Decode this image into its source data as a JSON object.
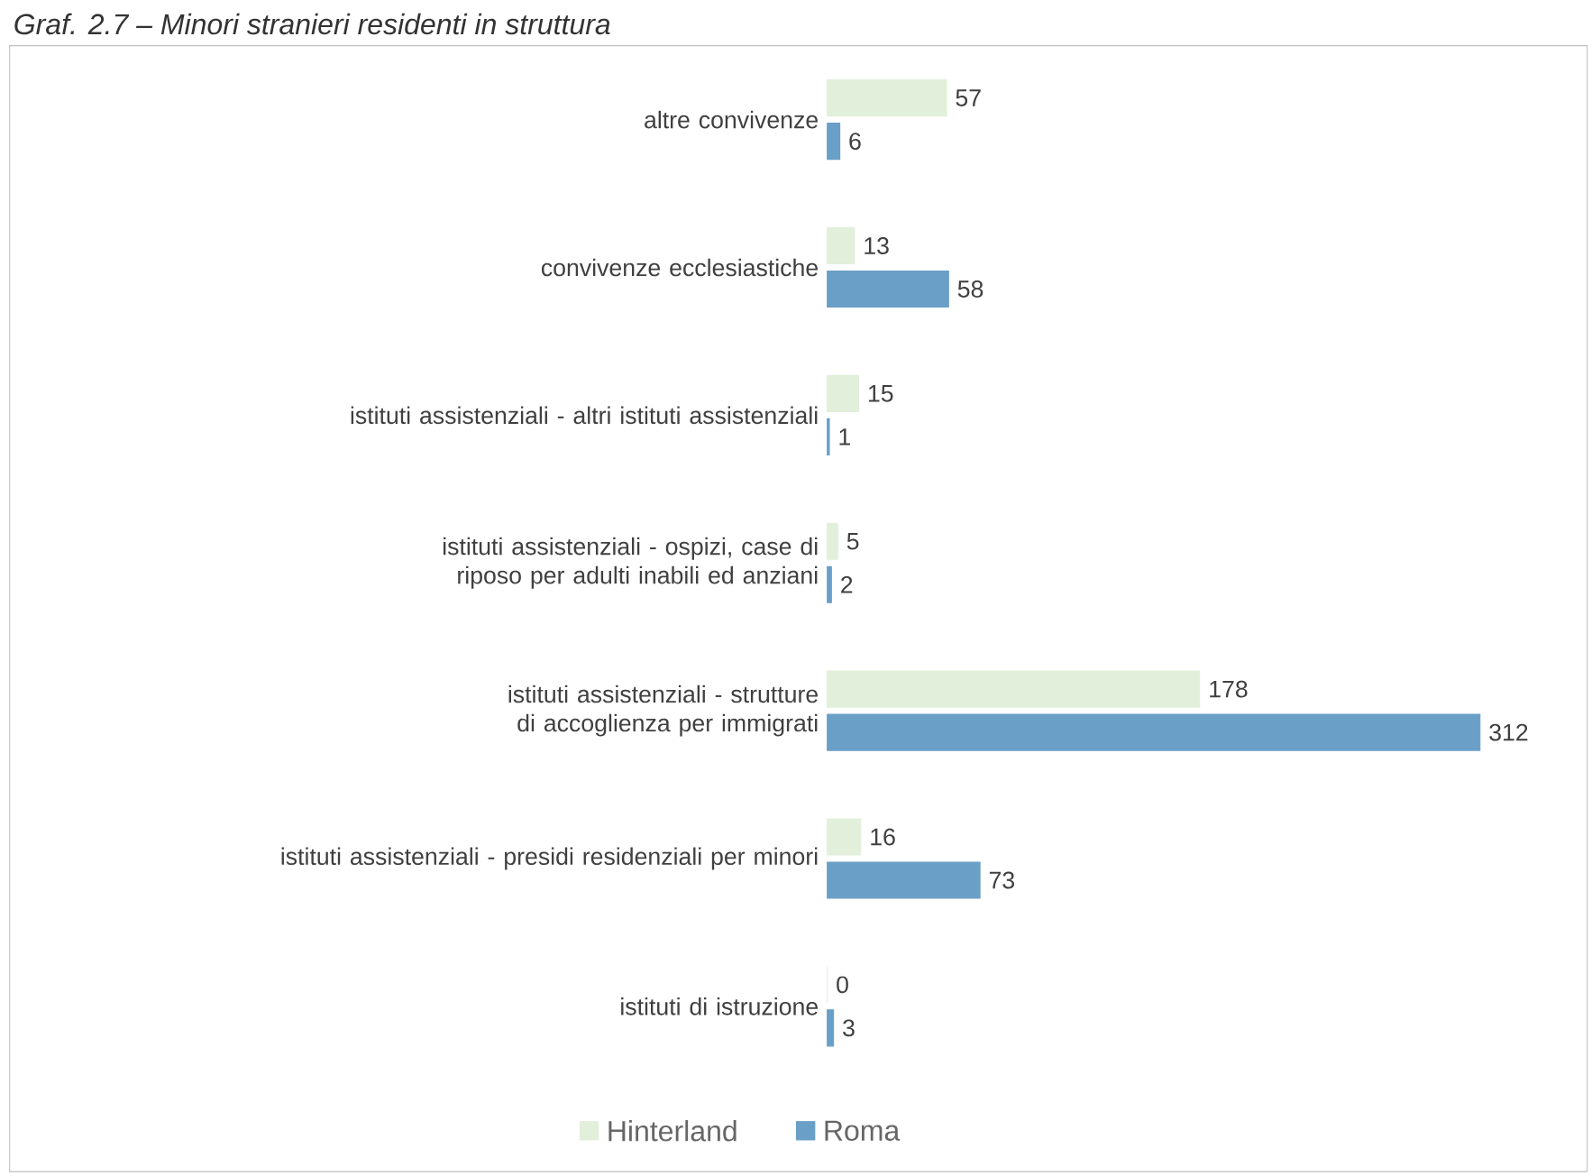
{
  "chart_data": {
    "type": "bar",
    "orientation": "horizontal",
    "title": "Graf. 2.7 – Minori stranieri residenti in struttura",
    "categories": [
      "altre convivenze",
      "convivenze ecclesiastiche",
      "istituti assistenziali - altri istituti assistenziali",
      "istituti assistenziali - ospizi, case di riposo per adulti inabili ed anziani",
      "istituti assistenziali - strutture di accoglienza per immigrati",
      "istituti assistenziali - presidi residenziali per minori",
      "istituti di istruzione"
    ],
    "series": [
      {
        "name": "Hinterland",
        "color": "#e2efda",
        "values": [
          57,
          13,
          15,
          5,
          178,
          16,
          0
        ]
      },
      {
        "name": "Roma",
        "color": "#6a9fc7",
        "values": [
          6,
          58,
          1,
          2,
          312,
          73,
          3
        ]
      }
    ],
    "data_labels": true,
    "legend": "bottom"
  }
}
